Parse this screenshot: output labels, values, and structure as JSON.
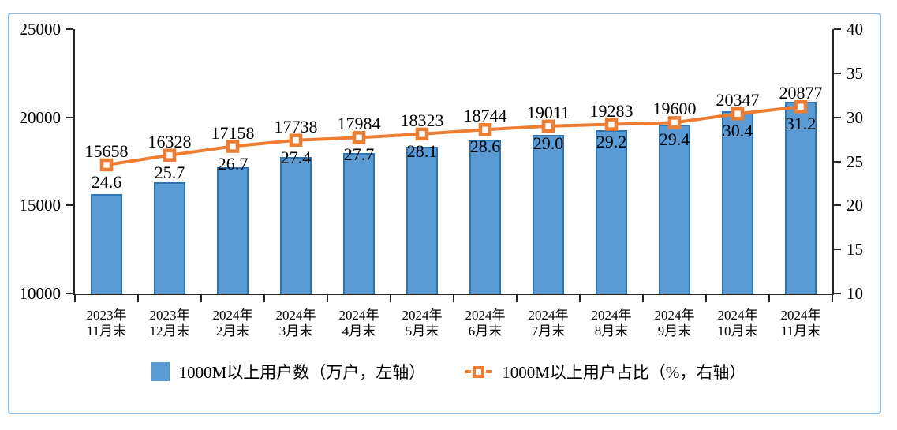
{
  "chart_data": {
    "type": "combo",
    "categories": [
      "2023年\n11月末",
      "2023年\n12月末",
      "2024年\n2月末",
      "2024年\n3月末",
      "2024年\n4月末",
      "2024年\n5月末",
      "2024年\n6月末",
      "2024年\n7月末",
      "2024年\n8月末",
      "2024年\n9月末",
      "2024年\n10月末",
      "2024年\n11月末"
    ],
    "series": [
      {
        "name": "1000M以上用户数（万户，左轴）",
        "type": "bar",
        "axis": "left",
        "values": [
          15658,
          16328,
          17158,
          17738,
          17984,
          18323,
          18744,
          19011,
          19283,
          19600,
          20347,
          20877
        ],
        "color": "#5B9BD5",
        "border_color": "#2E75B6"
      },
      {
        "name": "1000M以上用户占比（%，右轴）",
        "type": "line",
        "axis": "right",
        "values": [
          24.6,
          25.7,
          26.7,
          27.4,
          27.7,
          28.1,
          28.6,
          29.0,
          29.2,
          29.4,
          30.4,
          31.2
        ],
        "color": "#ED7D31",
        "marker": "open-square"
      }
    ],
    "left_axis": {
      "min": 10000,
      "max": 25000,
      "ticks": [
        25000,
        20000,
        15000,
        10000
      ]
    },
    "right_axis": {
      "min": 10,
      "max": 40,
      "ticks": [
        40,
        35,
        30,
        25,
        20,
        15,
        10
      ]
    },
    "legend_position": "bottom",
    "grid": false,
    "value_label_decimals": {
      "bar": 0,
      "line": 1
    },
    "axis_color": "#262626",
    "frame_border_color": "#8FBADC"
  }
}
